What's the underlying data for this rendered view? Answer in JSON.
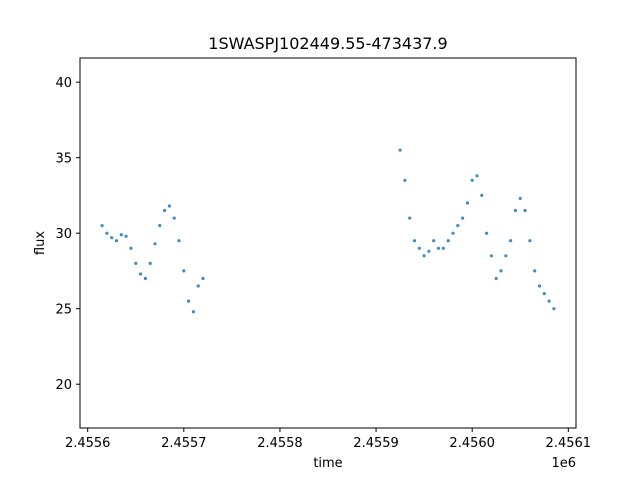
{
  "chart_data": {
    "type": "scatter",
    "title": "1SWASPJ102449.55-473437.9",
    "xlabel": "time",
    "ylabel": "flux",
    "x_offset_label": "1e6",
    "xlim": [
      2455592.0,
      2456108.0
    ],
    "ylim": [
      17.1,
      41.6
    ],
    "x_ticks": [
      2455600,
      2455700,
      2455800,
      2455900,
      2456000,
      2456100
    ],
    "x_tick_labels": [
      "2.4556",
      "2.4557",
      "2.4558",
      "2.4559",
      "2.4560",
      "2.4561"
    ],
    "y_ticks": [
      20,
      25,
      30,
      35,
      40
    ],
    "y_tick_labels": [
      "20",
      "25",
      "30",
      "35",
      "40"
    ],
    "grid": false,
    "legend": "none",
    "marker_color": "#1f77b4",
    "series": [
      {
        "x": [
          2455615,
          2455620,
          2455625,
          2455630,
          2455635,
          2455640,
          2455645,
          2455650,
          2455655,
          2455660,
          2455665,
          2455670,
          2455675,
          2455680,
          2455685,
          2455690,
          2455695,
          2455700,
          2455705,
          2455710,
          2455715,
          2455720,
          2455925,
          2455930,
          2455935,
          2455940,
          2455945,
          2455950,
          2455955,
          2455960,
          2455965,
          2455970,
          2455975,
          2455980,
          2455985,
          2455990,
          2455995,
          2456000,
          2456005,
          2456010,
          2456015,
          2456020,
          2456025,
          2456030,
          2456035,
          2456040,
          2456045,
          2456050,
          2456055,
          2456060,
          2456065,
          2456070,
          2456075,
          2456080,
          2456085
        ],
        "y": [
          30.5,
          30.0,
          29.7,
          29.5,
          29.9,
          29.8,
          29.0,
          28.0,
          27.3,
          27.0,
          28.0,
          29.3,
          30.5,
          31.5,
          31.8,
          31.0,
          29.5,
          27.5,
          25.5,
          24.8,
          26.5,
          27.0,
          35.5,
          33.5,
          31.0,
          29.5,
          29.0,
          28.5,
          28.8,
          29.5,
          29.0,
          29.0,
          29.5,
          30.0,
          30.5,
          31.0,
          32.0,
          33.5,
          33.8,
          32.5,
          30.0,
          28.5,
          27.0,
          27.5,
          28.5,
          29.5,
          31.5,
          32.3,
          31.5,
          29.5,
          27.5,
          26.5,
          26.0,
          25.5,
          25.0
        ]
      }
    ]
  }
}
